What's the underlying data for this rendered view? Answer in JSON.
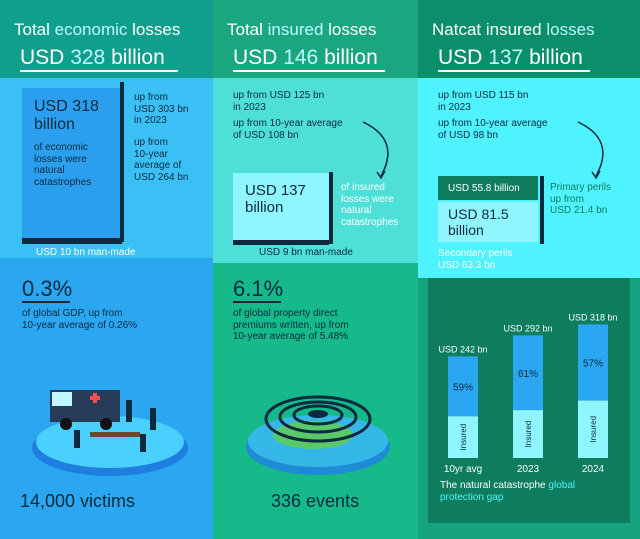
{
  "col1": {
    "title_pre": "Total ",
    "title_accent": "economic",
    "title_post": " losses",
    "amount_pre": "USD ",
    "amount_num": "328",
    "amount_post": " billion",
    "box_amount": "USD 318\nbillion",
    "box_desc": "of economic\nlosses were\nnatural\ncatastrophes",
    "side_text": "up from\nUSD 303 bn\nin 2023",
    "side_text2": "up from\n10-year\naverage of\nUSD 264 bn",
    "man_made": "USD 10 bn man-made",
    "pct": "0.3%",
    "pct_desc": "of global GDP, up from\n10-year average of 0.26%",
    "victims": "14,000 victims"
  },
  "col2": {
    "title_pre": "Total ",
    "title_accent": "insured",
    "title_post": " losses",
    "amount_pre": "USD ",
    "amount_num": "146",
    "amount_post": " billion",
    "top_text": "up from USD 125 bn\nin 2023",
    "top_text2": "up from 10-year average\nof USD 108 bn",
    "box_amount": "USD 137\nbillion",
    "box_desc": "of insured\nlosses were\nnatural\ncatastrophes",
    "man_made": "USD 9 bn man-made",
    "pct": "6.1%",
    "pct_desc": "of global property direct\npremiums written, up from\n10-year average of 5.48%",
    "events": "336 events"
  },
  "col3": {
    "title_pre": "Natcat insured ",
    "title_accent": "losses",
    "amount_pre": "USD ",
    "amount_num": "137",
    "amount_post": " billion",
    "top_text": "up from USD 115 bn\nin 2023",
    "top_text2": "up from 10-year average\nof USD 98 bn",
    "primary_bar": "USD 55.8 billion",
    "primary_desc": "Primary perils\nup from\nUSD 21.4 bn",
    "secondary_bar": "USD 81.5\nbillion",
    "secondary_desc": "Secondary perils\nUSD 63.3 bn",
    "footer_pre": "The natural catastrophe ",
    "footer_accent": "global\nprotection gap"
  },
  "chart_data": {
    "type": "bar",
    "categories": [
      "10yr avg",
      "2023",
      "2024"
    ],
    "totals": [
      "USD 242 bn",
      "USD 292 bn",
      "USD 318 bn"
    ],
    "total_values": [
      242,
      292,
      318
    ],
    "uninsured_pct": [
      "59%",
      "61%",
      "57%"
    ],
    "uninsured_values": [
      59,
      61,
      57
    ],
    "insured_label": "Insured"
  },
  "colors": {
    "blue": "#2aa7f0",
    "green": "#15b98a",
    "cyan": "#4ef3ff",
    "navy": "#0b2a3e",
    "light_cyan": "#8ff6ff"
  }
}
